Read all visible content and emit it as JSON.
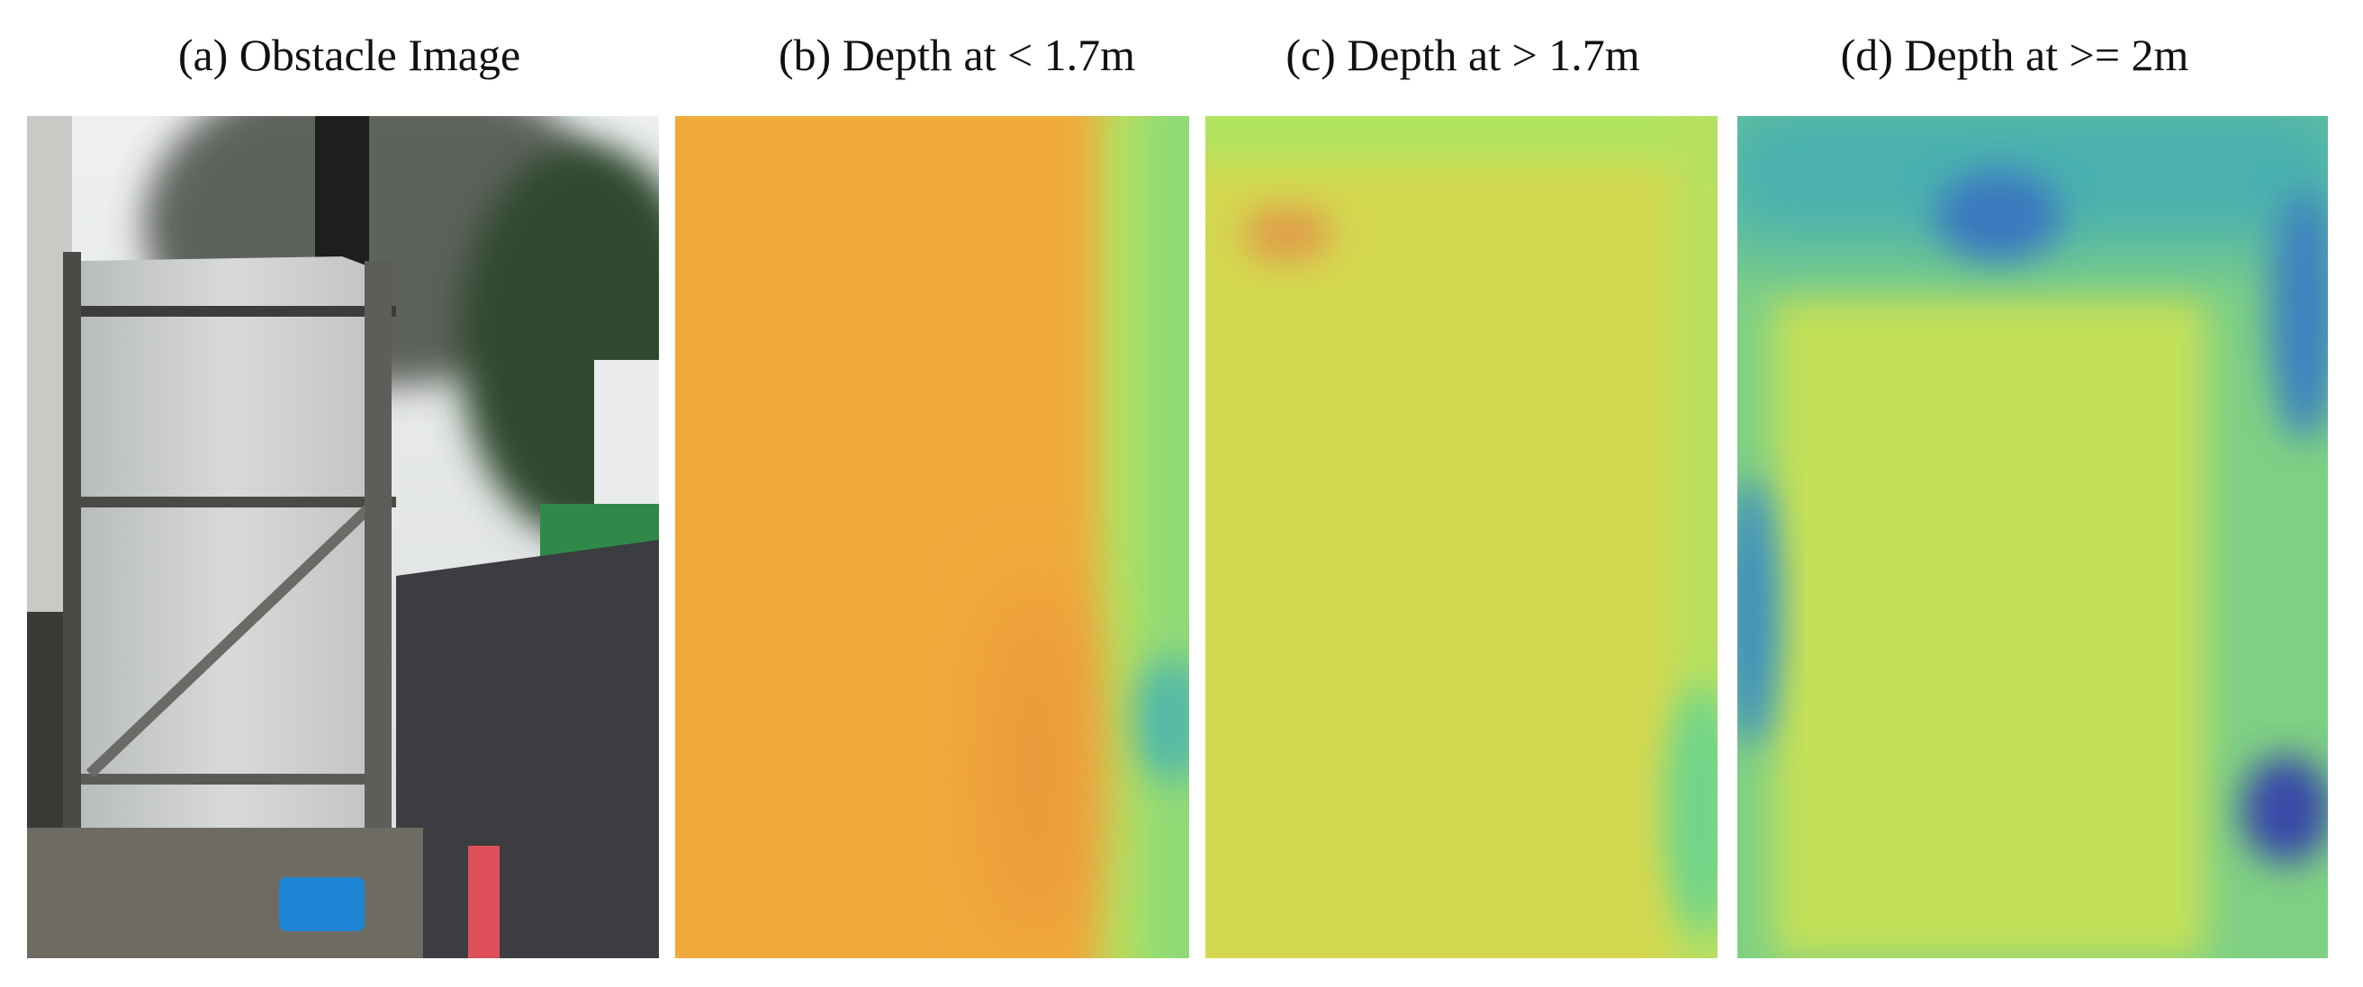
{
  "panels": [
    {
      "caption": "(a) Obstacle Image"
    },
    {
      "caption": "(b) Depth at < 1.7m"
    },
    {
      "caption": "(c) Depth at > 1.7m"
    },
    {
      "caption": "(d) Depth at >= 2m"
    }
  ]
}
